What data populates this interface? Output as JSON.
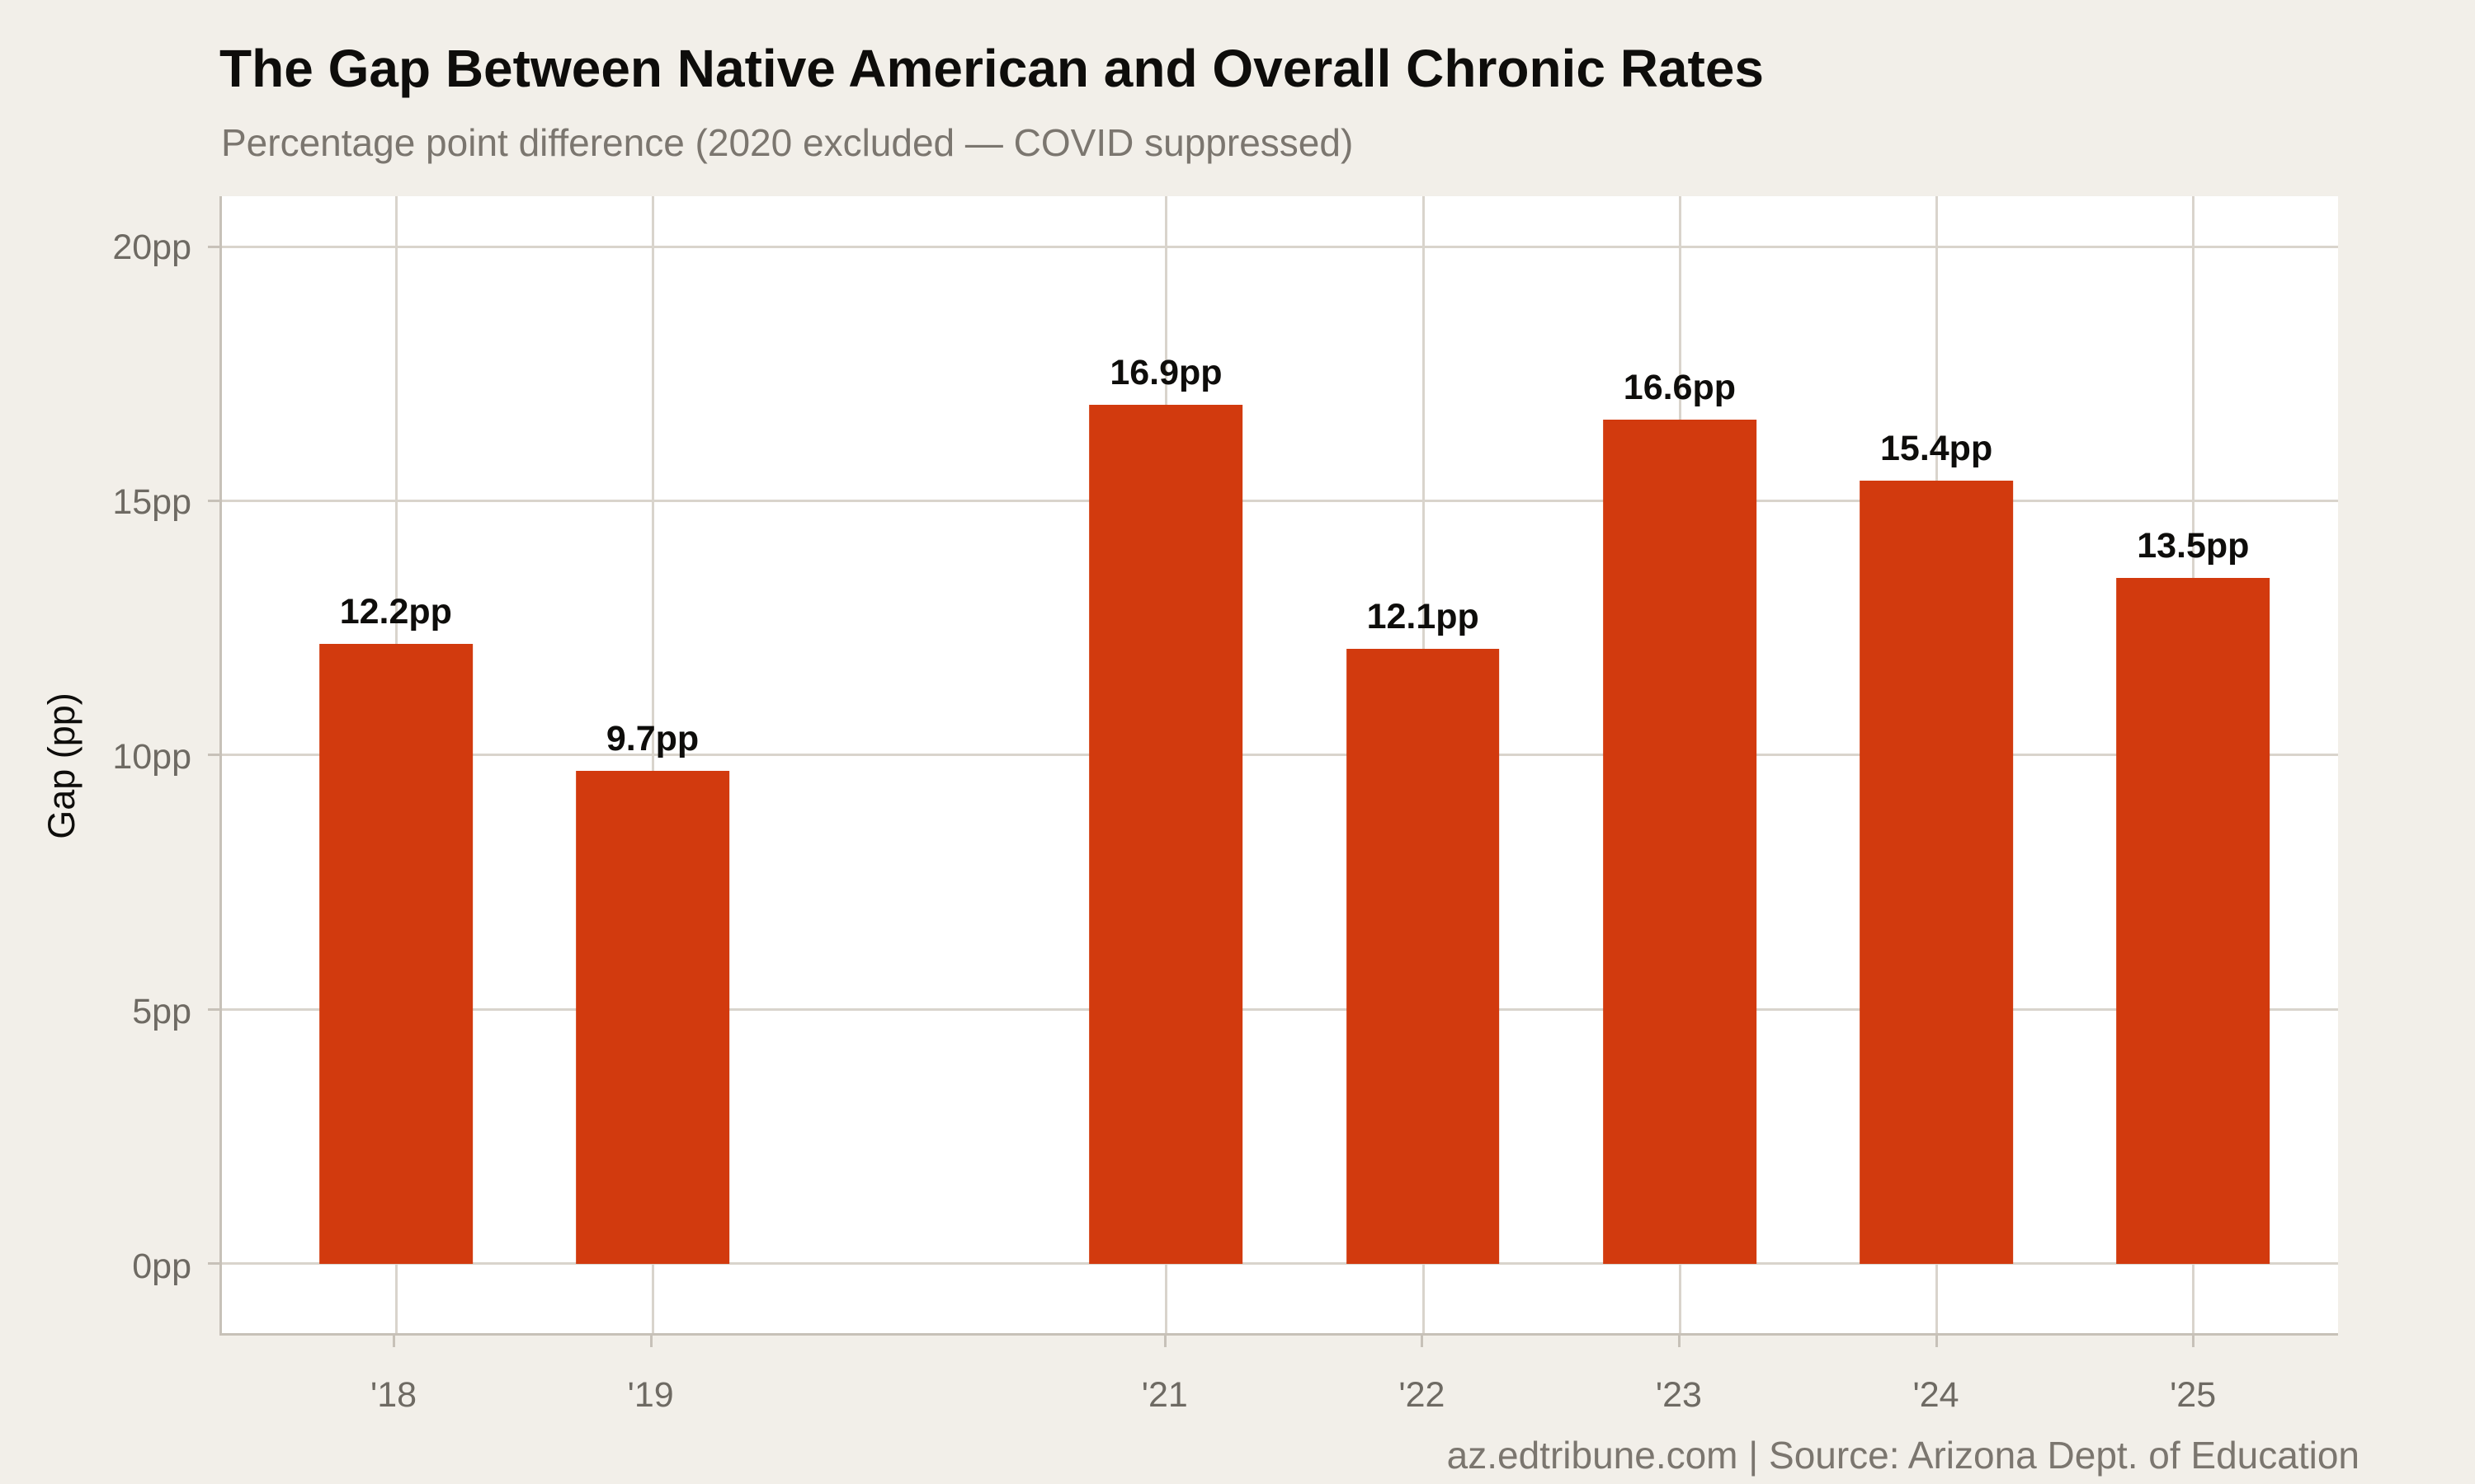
{
  "chart_data": {
    "type": "bar",
    "title": "The Gap Between Native American and Overall Chronic Rates",
    "subtitle": "Percentage point difference (2020 excluded — COVID suppressed)",
    "ylabel": "Gap (pp)",
    "xlabel": "",
    "categories": [
      "'18",
      "'19",
      "'21",
      "'22",
      "'23",
      "'24",
      "'25"
    ],
    "values": [
      12.2,
      9.7,
      16.9,
      12.1,
      16.6,
      15.4,
      13.5
    ],
    "bar_labels": [
      "12.2pp",
      "9.7pp",
      "16.9pp",
      "12.1pp",
      "16.6pp",
      "15.4pp",
      "13.5pp"
    ],
    "slots": [
      0,
      1,
      3,
      4,
      5,
      6,
      7
    ],
    "total_slots": 8,
    "excluded_slot": 2,
    "yticks": [
      {
        "value": 0,
        "label": "0pp"
      },
      {
        "value": 5,
        "label": "5pp"
      },
      {
        "value": 10,
        "label": "10pp"
      },
      {
        "value": 15,
        "label": "15pp"
      },
      {
        "value": 20,
        "label": "20pp"
      }
    ],
    "ylim": [
      -1.36,
      21.0
    ],
    "grid": true,
    "legend": "none",
    "colors": {
      "bar": "#d23a0e",
      "page_bg": "#f2efe9",
      "plot_bg": "#ffffff",
      "grid": "#d9d4cc",
      "axis": "#c7c1b8",
      "tick_label": "#6e6a63",
      "title": "#0e0d0b",
      "subtitle": "#7b766f"
    }
  },
  "footer": {
    "credit": "az.edtribune.com | Source: Arizona Dept. of Education"
  }
}
